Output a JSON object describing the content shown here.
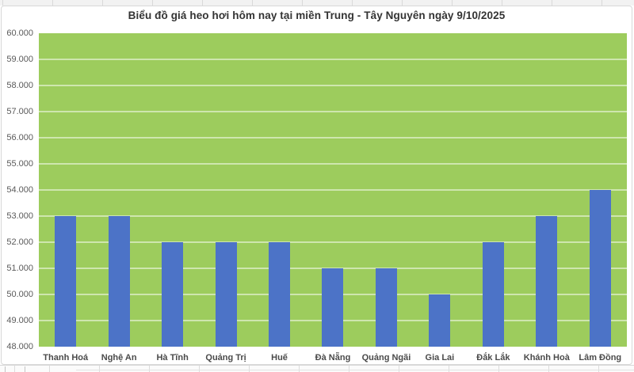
{
  "chart_data": {
    "type": "bar",
    "title": "Biểu đồ giá heo hơi hôm nay tại miền Trung - Tây Nguyên ngày 9/10/2025",
    "categories": [
      "Thanh Hoá",
      "Nghệ An",
      "Hà Tĩnh",
      "Quảng Trị",
      "Huế",
      "Đà Nẵng",
      "Quảng Ngãi",
      "Gia Lai",
      "Đắk Lắk",
      "Khánh Hoà",
      "Lâm Đồng"
    ],
    "values": [
      53000,
      53000,
      52000,
      52000,
      52000,
      51000,
      51000,
      50000,
      52000,
      53000,
      54000
    ],
    "xlabel": "",
    "ylabel": "",
    "ylim": [
      48000,
      60000
    ],
    "ytick_step": 1000,
    "ytick_labels": [
      "60.000",
      "59.000",
      "58.000",
      "57.000",
      "56.000",
      "55.000",
      "54.000",
      "53.000",
      "52.000",
      "51.000",
      "50.000",
      "49.000",
      "48.000"
    ],
    "grid": true,
    "legend": false,
    "colors": {
      "bar": "#4C73C7",
      "plot_background": "#9DCC5D",
      "gridline": "#CBE4A6",
      "title_text": "#333333",
      "axis_text": "#595959",
      "category_text": "#4A4A4A",
      "chart_border": "#D8D8D8",
      "sheet_strip": "#F2F2F2"
    }
  }
}
